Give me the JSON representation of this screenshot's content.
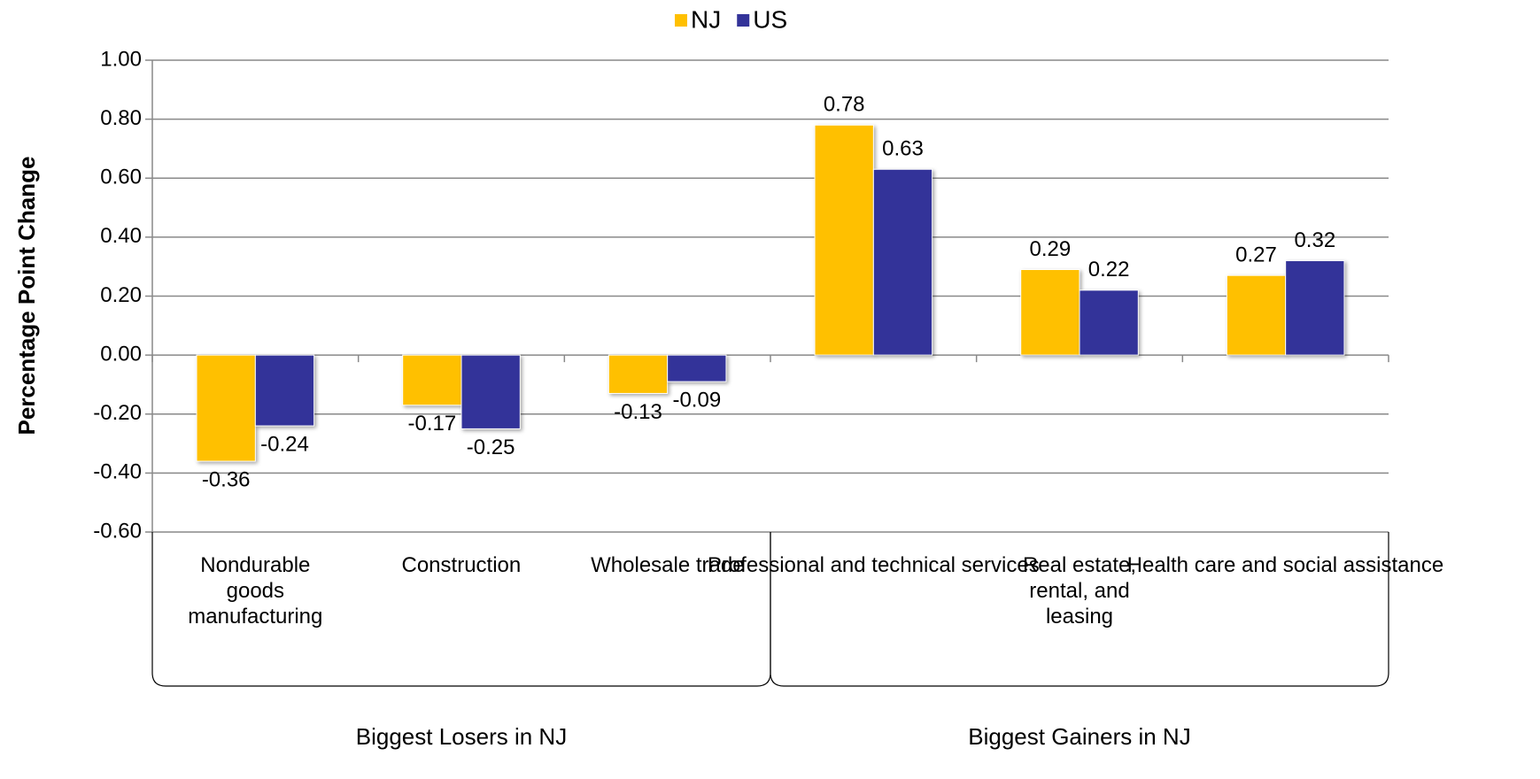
{
  "chart_data": {
    "type": "bar",
    "y_label": "Percentage Point Change",
    "categories": [
      "Nondurable goods manufacturing",
      "Construction",
      "Wholesale trade",
      "Professional and technical services",
      "Real estate, rental, and leasing",
      "Health care and social assistance"
    ],
    "groups": [
      "Biggest Losers in NJ",
      "Biggest Gainers in NJ"
    ],
    "series": [
      {
        "name": "NJ",
        "color": "#FFC000",
        "values": [
          -0.36,
          -0.17,
          -0.13,
          0.78,
          0.29,
          0.27
        ]
      },
      {
        "name": "US",
        "color": "#333399",
        "values": [
          -0.24,
          -0.25,
          -0.09,
          0.63,
          0.22,
          0.32
        ]
      }
    ],
    "ylim": [
      -0.6,
      1.0
    ],
    "yticks": [
      {
        "value": -0.6,
        "label": "-0.60"
      },
      {
        "value": -0.4,
        "label": "-0.40"
      },
      {
        "value": -0.2,
        "label": "-0.20"
      },
      {
        "value": 0,
        "label": "0.00"
      },
      {
        "value": 0.2,
        "label": "0.20"
      },
      {
        "value": 0.4,
        "label": "0.40"
      },
      {
        "value": 0.6,
        "label": "0.60"
      },
      {
        "value": 0.8,
        "label": "0.80"
      },
      {
        "value": 1.0,
        "label": "1.00"
      }
    ],
    "grid": true,
    "legend": "top"
  }
}
